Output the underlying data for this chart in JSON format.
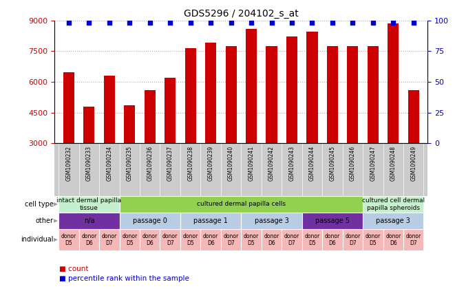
{
  "title": "GDS5296 / 204102_s_at",
  "samples": [
    "GSM1090232",
    "GSM1090233",
    "GSM1090234",
    "GSM1090235",
    "GSM1090236",
    "GSM1090237",
    "GSM1090238",
    "GSM1090239",
    "GSM1090240",
    "GSM1090241",
    "GSM1090242",
    "GSM1090243",
    "GSM1090244",
    "GSM1090245",
    "GSM1090246",
    "GSM1090247",
    "GSM1090248",
    "GSM1090249"
  ],
  "counts": [
    6450,
    4800,
    6300,
    4850,
    5600,
    6200,
    7650,
    7900,
    7750,
    8600,
    7750,
    8200,
    8450,
    7750,
    7750,
    7750,
    8850,
    5600
  ],
  "bar_color": "#cc0000",
  "dot_color": "#0000cc",
  "ylim_left": [
    3000,
    9000
  ],
  "yticks_left": [
    3000,
    4500,
    6000,
    7500,
    9000
  ],
  "ylim_right": [
    0,
    100
  ],
  "yticks_right": [
    0,
    25,
    50,
    75,
    100
  ],
  "cell_type_groups": [
    {
      "label": "intact dermal papilla\ntissue",
      "start": 0,
      "end": 3,
      "color": "#c6efce"
    },
    {
      "label": "cultured dermal papilla cells",
      "start": 3,
      "end": 15,
      "color": "#92d050"
    },
    {
      "label": "cultured cell dermal\npapilla spheroids",
      "start": 15,
      "end": 18,
      "color": "#c6efce"
    }
  ],
  "other_groups": [
    {
      "label": "n/a",
      "start": 0,
      "end": 3,
      "color": "#7030a0"
    },
    {
      "label": "passage 0",
      "start": 3,
      "end": 6,
      "color": "#b8cce4"
    },
    {
      "label": "passage 1",
      "start": 6,
      "end": 9,
      "color": "#b8cce4"
    },
    {
      "label": "passage 3",
      "start": 9,
      "end": 12,
      "color": "#b8cce4"
    },
    {
      "label": "passage 5",
      "start": 12,
      "end": 15,
      "color": "#7030a0"
    },
    {
      "label": "passage 3",
      "start": 15,
      "end": 18,
      "color": "#b8cce4"
    }
  ],
  "individual_groups": [
    {
      "label": "donor\nD5",
      "start": 0,
      "end": 1
    },
    {
      "label": "donor\nD6",
      "start": 1,
      "end": 2
    },
    {
      "label": "donor\nD7",
      "start": 2,
      "end": 3
    },
    {
      "label": "donor\nD5",
      "start": 3,
      "end": 4
    },
    {
      "label": "donor\nD6",
      "start": 4,
      "end": 5
    },
    {
      "label": "donor\nD7",
      "start": 5,
      "end": 6
    },
    {
      "label": "donor\nD5",
      "start": 6,
      "end": 7
    },
    {
      "label": "donor\nD6",
      "start": 7,
      "end": 8
    },
    {
      "label": "donor\nD7",
      "start": 8,
      "end": 9
    },
    {
      "label": "donor\nD5",
      "start": 9,
      "end": 10
    },
    {
      "label": "donor\nD6",
      "start": 10,
      "end": 11
    },
    {
      "label": "donor\nD7",
      "start": 11,
      "end": 12
    },
    {
      "label": "donor\nD5",
      "start": 12,
      "end": 13
    },
    {
      "label": "donor\nD6",
      "start": 13,
      "end": 14
    },
    {
      "label": "donor\nD7",
      "start": 14,
      "end": 15
    },
    {
      "label": "donor\nD5",
      "start": 15,
      "end": 16
    },
    {
      "label": "donor\nD6",
      "start": 16,
      "end": 17
    },
    {
      "label": "donor\nD7",
      "start": 17,
      "end": 18
    }
  ],
  "individual_color": "#f4b8b8",
  "sample_label_bg": "#cccccc",
  "row_labels": [
    "cell type",
    "other",
    "individual"
  ],
  "legend_count_color": "#cc0000",
  "legend_percentile_color": "#0000cc",
  "bg_color": "#ffffff",
  "grid_color": "#aaaaaa",
  "tick_label_color_left": "#cc0000",
  "tick_label_color_right": "#0000cc",
  "arrow_color": "#999999"
}
